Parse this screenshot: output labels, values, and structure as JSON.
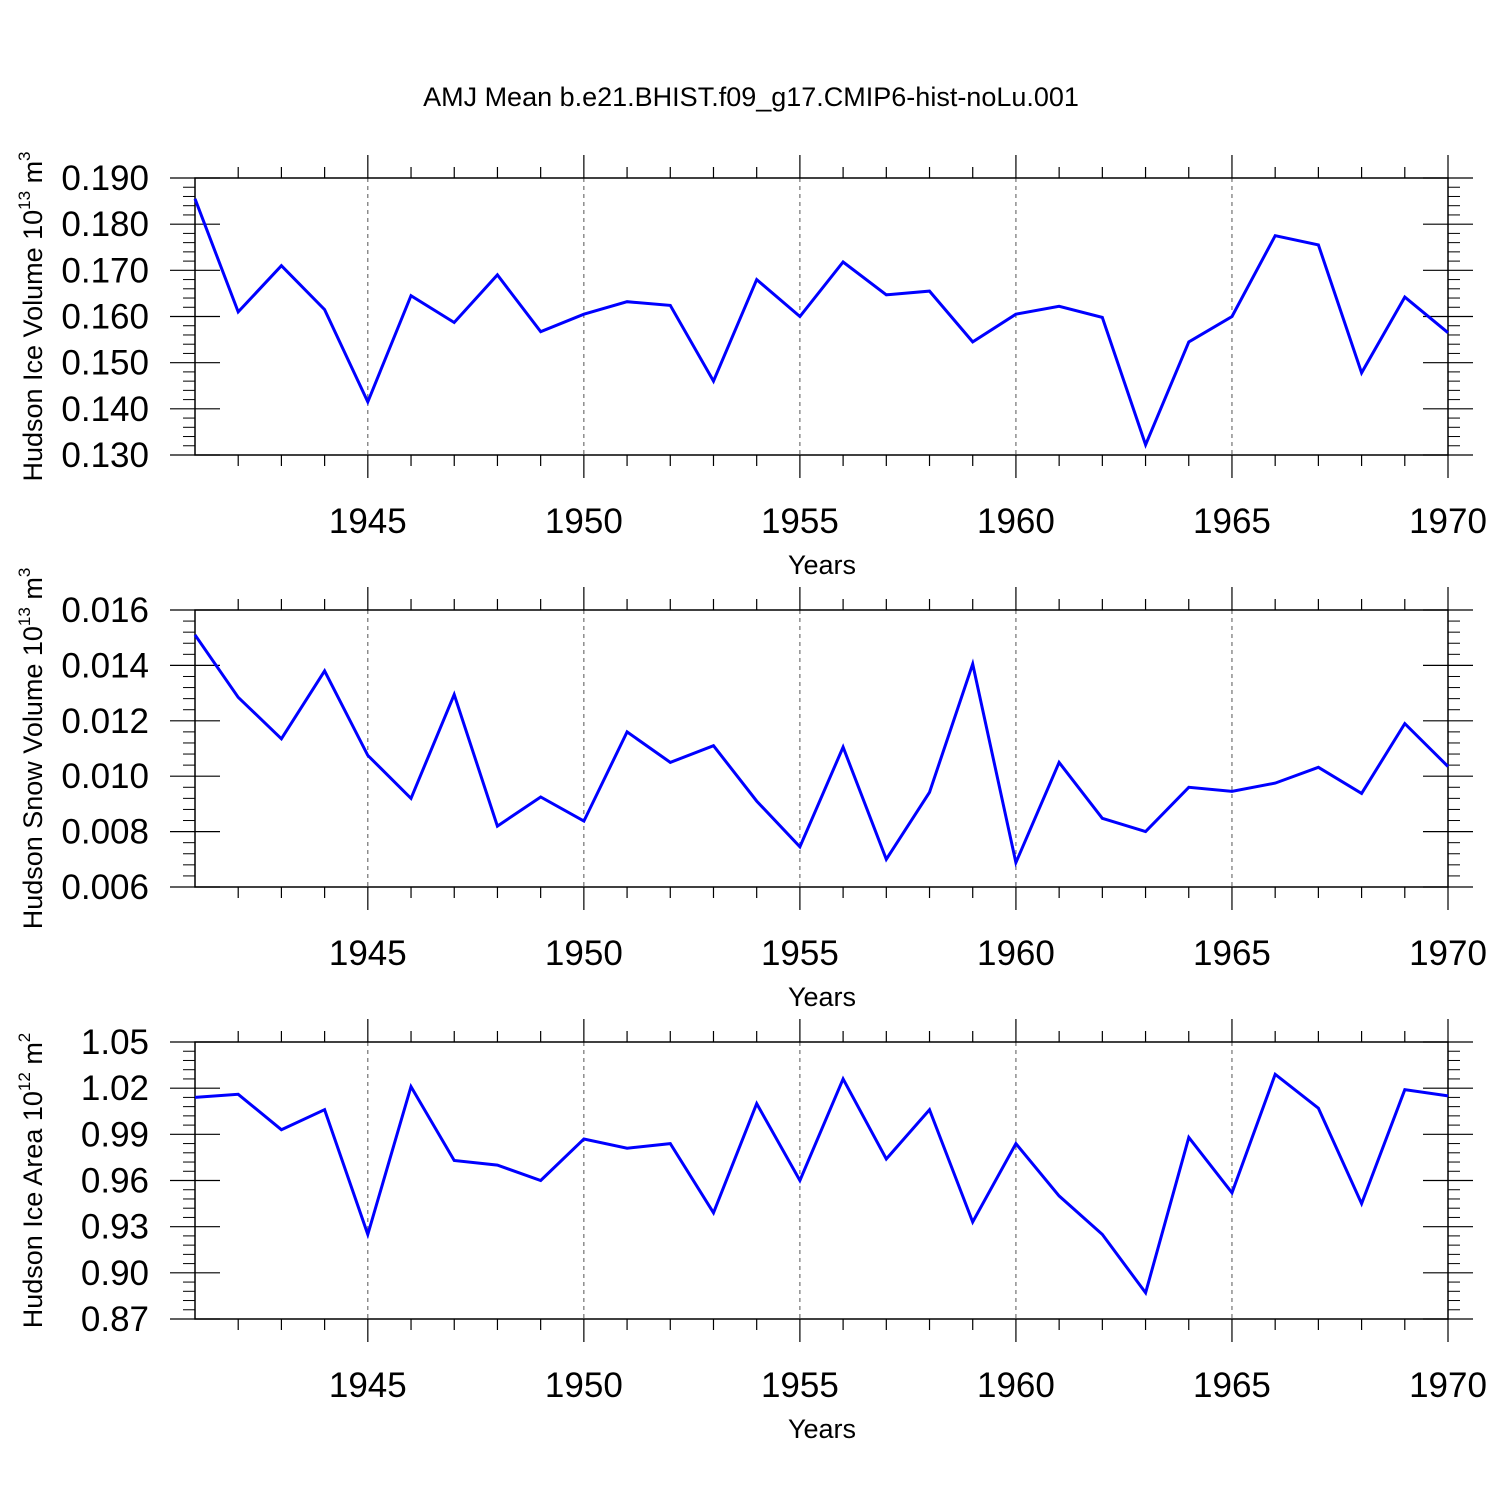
{
  "title": "AMJ Mean b.e21.BHIST.f09_g17.CMIP6-hist-noLu.001",
  "colors": {
    "line": "#0000ff",
    "axis": "#000000",
    "grid": "#555555"
  },
  "chart_data": [
    {
      "type": "line",
      "xlabel": "Years",
      "ylabel": "Hudson Ice Volume 10",
      "ylabel_exp": "13",
      "ylabel_unit": " m",
      "ylabel_unit_exp": "3",
      "xlim": [
        1941,
        1970
      ],
      "ylim": [
        0.13,
        0.19
      ],
      "yticks": [
        0.13,
        0.14,
        0.15,
        0.16,
        0.17,
        0.18,
        0.19
      ],
      "ytick_labels": [
        "0.130",
        "0.140",
        "0.150",
        "0.160",
        "0.170",
        "0.180",
        "0.190"
      ],
      "xticks": [
        1945,
        1950,
        1955,
        1960,
        1965,
        1970
      ],
      "xtick_labels": [
        "1945",
        "1950",
        "1955",
        "1960",
        "1965",
        "1970"
      ],
      "grid": "x-dashed",
      "x": [
        1941,
        1942,
        1943,
        1944,
        1945,
        1946,
        1947,
        1948,
        1949,
        1950,
        1951,
        1952,
        1953,
        1954,
        1955,
        1956,
        1957,
        1958,
        1959,
        1960,
        1961,
        1962,
        1963,
        1964,
        1965,
        1966,
        1967,
        1968,
        1969,
        1970
      ],
      "values": [
        0.1855,
        0.161,
        0.171,
        0.1615,
        0.1415,
        0.1645,
        0.1587,
        0.169,
        0.1567,
        0.1605,
        0.1632,
        0.1624,
        0.146,
        0.168,
        0.16,
        0.1718,
        0.1647,
        0.1655,
        0.1545,
        0.1605,
        0.1622,
        0.1598,
        0.1322,
        0.1545,
        0.16,
        0.1775,
        0.1755,
        0.1478,
        0.1642,
        0.1565
      ]
    },
    {
      "type": "line",
      "xlabel": "Years",
      "ylabel": "Hudson Snow Volume 10",
      "ylabel_exp": "13",
      "ylabel_unit": " m",
      "ylabel_unit_exp": "3",
      "xlim": [
        1941,
        1970
      ],
      "ylim": [
        0.006,
        0.016
      ],
      "yticks": [
        0.006,
        0.008,
        0.01,
        0.012,
        0.014,
        0.016
      ],
      "ytick_labels": [
        "0.006",
        "0.008",
        "0.010",
        "0.012",
        "0.014",
        "0.016"
      ],
      "xticks": [
        1945,
        1950,
        1955,
        1960,
        1965,
        1970
      ],
      "xtick_labels": [
        "1945",
        "1950",
        "1955",
        "1960",
        "1965",
        "1970"
      ],
      "grid": "x-dashed",
      "x": [
        1941,
        1942,
        1943,
        1944,
        1945,
        1946,
        1947,
        1948,
        1949,
        1950,
        1951,
        1952,
        1953,
        1954,
        1955,
        1956,
        1957,
        1958,
        1959,
        1960,
        1961,
        1962,
        1963,
        1964,
        1965,
        1966,
        1967,
        1968,
        1969,
        1970
      ],
      "values": [
        0.0151,
        0.01285,
        0.01135,
        0.0138,
        0.01075,
        0.0092,
        0.01295,
        0.0082,
        0.00925,
        0.00838,
        0.0116,
        0.0105,
        0.0111,
        0.0091,
        0.00745,
        0.01105,
        0.007,
        0.00942,
        0.01405,
        0.00688,
        0.0105,
        0.00848,
        0.008,
        0.0096,
        0.00945,
        0.00975,
        0.01032,
        0.00938,
        0.0119,
        0.01035
      ]
    },
    {
      "type": "line",
      "xlabel": "Years",
      "ylabel": "Hudson Ice Area 10",
      "ylabel_exp": "12",
      "ylabel_unit": " m",
      "ylabel_unit_exp": "2",
      "xlim": [
        1941,
        1970
      ],
      "ylim": [
        0.87,
        1.05
      ],
      "yticks": [
        0.87,
        0.9,
        0.93,
        0.96,
        0.99,
        1.02,
        1.05
      ],
      "ytick_labels": [
        "0.87",
        "0.90",
        "0.93",
        "0.96",
        "0.99",
        "1.02",
        "1.05"
      ],
      "xticks": [
        1945,
        1950,
        1955,
        1960,
        1965,
        1970
      ],
      "xtick_labels": [
        "1945",
        "1950",
        "1955",
        "1960",
        "1965",
        "1970"
      ],
      "grid": "x-dashed",
      "x": [
        1941,
        1942,
        1943,
        1944,
        1945,
        1946,
        1947,
        1948,
        1949,
        1950,
        1951,
        1952,
        1953,
        1954,
        1955,
        1956,
        1957,
        1958,
        1959,
        1960,
        1961,
        1962,
        1963,
        1964,
        1965,
        1966,
        1967,
        1968,
        1969,
        1970
      ],
      "values": [
        1.014,
        1.016,
        0.993,
        1.006,
        0.925,
        1.021,
        0.973,
        0.97,
        0.96,
        0.987,
        0.981,
        0.984,
        0.939,
        1.01,
        0.96,
        1.026,
        0.974,
        1.006,
        0.933,
        0.984,
        0.95,
        0.925,
        0.887,
        0.988,
        0.952,
        1.029,
        1.007,
        0.945,
        1.019,
        1.015
      ]
    }
  ]
}
